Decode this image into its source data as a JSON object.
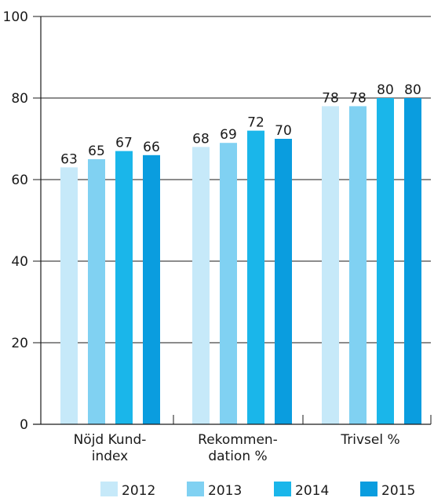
{
  "chart_data": {
    "type": "bar",
    "categories": [
      [
        "Nöjd Kund-",
        "index"
      ],
      [
        "Rekommen-",
        "dation %"
      ],
      [
        "Trivsel %"
      ]
    ],
    "series": [
      {
        "name": "2012",
        "values": [
          63,
          68,
          78
        ],
        "color": "#c6e9f9"
      },
      {
        "name": "2013",
        "values": [
          65,
          69,
          78
        ],
        "color": "#80d1f2"
      },
      {
        "name": "2014",
        "values": [
          67,
          72,
          80
        ],
        "color": "#1ab6ea"
      },
      {
        "name": "2015",
        "values": [
          66,
          70,
          80
        ],
        "color": "#0a9ddf"
      }
    ],
    "yticks": [
      "0",
      "20",
      "40",
      "60",
      "80",
      "100"
    ],
    "ylim": [
      0,
      100
    ],
    "grid": true,
    "legend": "bottom"
  }
}
